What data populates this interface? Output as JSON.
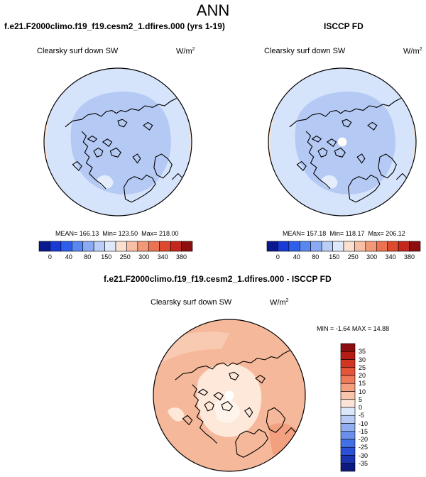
{
  "page_title": "ANN",
  "chart_data": [
    {
      "type": "heatmap",
      "projection": "polar-stereographic-north",
      "title": "f.e21.F2000climo.f19_f19.cesm2_1.dfires.000 (yrs 1-19)",
      "subtitle": "Clearsky surf down SW",
      "units": "W/m",
      "units_sup": "2",
      "stats": {
        "mean_label": "MEAN=",
        "mean": "166.13",
        "min_label": "Min=",
        "min": "123.50",
        "max_label": "Max=",
        "max": "218.00"
      },
      "colorbar": {
        "orientation": "horizontal",
        "labels": [
          "0",
          "40",
          "80",
          "150",
          "250",
          "300",
          "340",
          "380"
        ],
        "colors": [
          "#0a1a8c",
          "#1a3ad6",
          "#2e5fea",
          "#5a86ef",
          "#8aaaf2",
          "#b9cdf6",
          "#dde8fb",
          "#fbe0d0",
          "#f7bfa5",
          "#f29a78",
          "#eb7352",
          "#de4a2f",
          "#c4271c",
          "#8c0e0e"
        ]
      }
    },
    {
      "type": "heatmap",
      "projection": "polar-stereographic-north",
      "title": "ISCCP FD",
      "subtitle": "Clearsky surf down SW",
      "units": "W/m",
      "units_sup": "2",
      "stats": {
        "mean_label": "MEAN=",
        "mean": "157.18",
        "min_label": "Min=",
        "min": "118.17",
        "max_label": "Max=",
        "max": "206.12"
      },
      "colorbar": {
        "orientation": "horizontal",
        "labels": [
          "0",
          "40",
          "80",
          "150",
          "250",
          "300",
          "340",
          "380"
        ],
        "colors": [
          "#0a1a8c",
          "#1a3ad6",
          "#2e5fea",
          "#5a86ef",
          "#8aaaf2",
          "#b9cdf6",
          "#dde8fb",
          "#fbe0d0",
          "#f7bfa5",
          "#f29a78",
          "#eb7352",
          "#de4a2f",
          "#c4271c",
          "#8c0e0e"
        ]
      }
    },
    {
      "type": "heatmap",
      "projection": "polar-stereographic-north",
      "title": "f.e21.F2000climo.f19_f19.cesm2_1.dfires.000 - ISCCP FD",
      "subtitle": "Clearsky surf down SW",
      "units": "W/m",
      "units_sup": "2",
      "stats": {
        "min_label": "MIN =",
        "min": "-1.64",
        "max_label": "MAX =",
        "max": "14.88"
      },
      "colorbar": {
        "orientation": "vertical",
        "labels": [
          "35",
          "30",
          "25",
          "20",
          "15",
          "10",
          "5",
          "0",
          "-5",
          "-10",
          "-15",
          "-20",
          "-25",
          "-30",
          "-35"
        ],
        "colors": [
          "#8c0e0e",
          "#b41d16",
          "#d13524",
          "#e4553a",
          "#ef7a5a",
          "#f4a07f",
          "#f8c4ab",
          "#fde4d6",
          "#dbe7fb",
          "#b7cbf5",
          "#90aef0",
          "#6a90ec",
          "#4470e6",
          "#2a50d6",
          "#1a34b0",
          "#0c1a80"
        ]
      }
    }
  ],
  "colors": {
    "panel_bg_light_blue": "#d5e3fb",
    "panel_mid_blue": "#b4c9f4",
    "panel_peach": "#fbe3d3",
    "diff_orange": "#f6b89a",
    "diff_light": "#fde8da"
  }
}
